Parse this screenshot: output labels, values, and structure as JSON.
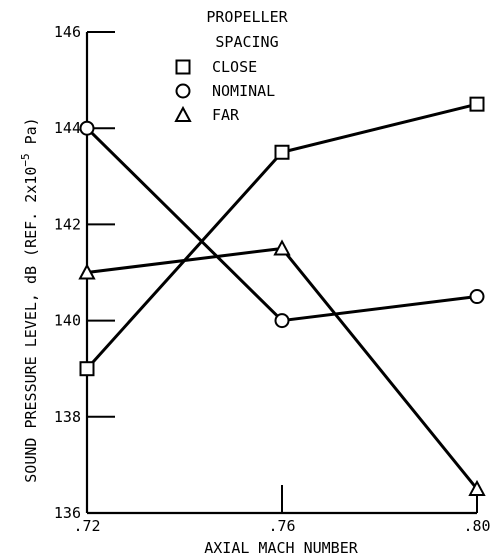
{
  "chart_data": {
    "type": "line",
    "xlabel": "AXIAL MACH NUMBER",
    "ylabel": "SOUND PRESSURE LEVEL, dB (REF. 2x10",
    "ylabel_exponent": "−5",
    "ylabel_unit": " Pa)",
    "xlim": [
      0.72,
      0.8
    ],
    "ylim": [
      136,
      146
    ],
    "x_ticks": [
      0.72,
      0.76,
      0.8
    ],
    "x_tick_labels": [
      ".72",
      ".76",
      ".80"
    ],
    "y_ticks": [
      136,
      138,
      140,
      142,
      144,
      146
    ],
    "y_tick_labels": [
      "136",
      "138",
      "140",
      "142",
      "144",
      "146"
    ],
    "legend": {
      "title_line1": "PROPELLER",
      "title_line2": "SPACING",
      "placement": "top-right"
    },
    "x": [
      0.72,
      0.76,
      0.8
    ],
    "series": [
      {
        "name": "CLOSE",
        "marker": "square",
        "values": [
          139.0,
          143.5,
          144.5
        ]
      },
      {
        "name": "NOMINAL",
        "marker": "circle",
        "values": [
          144.0,
          140.0,
          140.5
        ]
      },
      {
        "name": "FAR",
        "marker": "triangle",
        "values": [
          141.0,
          141.5,
          136.5
        ]
      }
    ],
    "grid": false,
    "line_color": "#000000"
  }
}
